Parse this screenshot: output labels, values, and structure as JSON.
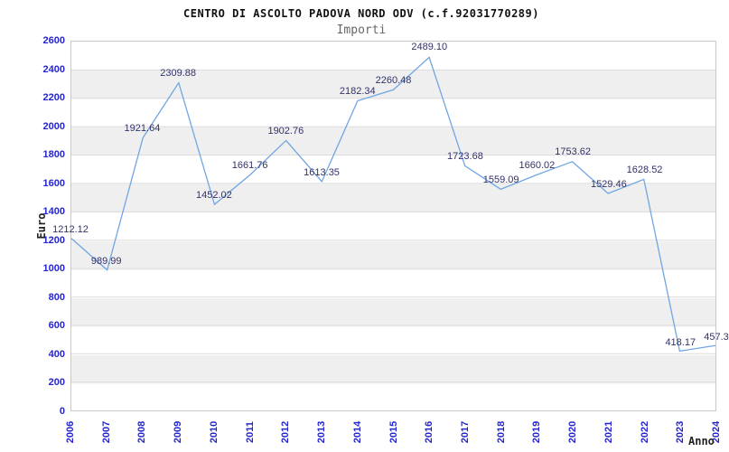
{
  "header": {
    "title": "CENTRO DI ASCOLTO PADOVA NORD ODV (c.f.92031770289)",
    "subtitle": "Importi"
  },
  "axes": {
    "y_label": "Euro",
    "x_label": "Anno"
  },
  "colors": {
    "line": "#70a6e2",
    "tick_text": "#2424cf",
    "point_label_text": "#32326b",
    "gridline": "#dcdcdc",
    "band_gray": "#efefef",
    "plot_border": "#c8c8c8",
    "title_text": "#111111",
    "subtitle_text": "#666666",
    "axis_title_text": "#222222"
  },
  "chart_data": {
    "type": "line",
    "title": "CENTRO DI ASCOLTO PADOVA NORD ODV (c.f.92031770289)",
    "subtitle": "Importi",
    "xlabel": "Anno",
    "ylabel": "Euro",
    "categories": [
      "2006",
      "2007",
      "2008",
      "2009",
      "2010",
      "2011",
      "2012",
      "2013",
      "2014",
      "2015",
      "2016",
      "2017",
      "2018",
      "2019",
      "2020",
      "2021",
      "2022",
      "2023",
      "2024"
    ],
    "values": [
      1212.12,
      989.99,
      1921.64,
      2309.88,
      1452.02,
      1661.76,
      1902.76,
      1613.35,
      2182.34,
      2260.48,
      2489.1,
      1723.68,
      1559.09,
      1660.02,
      1753.62,
      1529.46,
      1628.52,
      418.17,
      457.3
    ],
    "value_labels": [
      "1212.12",
      "989.99",
      "1921.64",
      "2309.88",
      "1452.02",
      "1661.76",
      "1902.76",
      "1613.35",
      "2182.34",
      "2260.48",
      "2489.10",
      "1723.68",
      "1559.09",
      "1660.02",
      "1753.62",
      "1529.46",
      "1628.52",
      "418.17",
      "457.3"
    ],
    "y_tick_labels": [
      "0",
      "200",
      "400",
      "600",
      "800",
      "1000",
      "1200",
      "1400",
      "1600",
      "1800",
      "2000",
      "2200",
      "2400",
      "2600"
    ],
    "ylim": [
      0,
      2600
    ],
    "ytick_step": 200,
    "grid": true,
    "legend": "none",
    "band_alternating": true
  }
}
